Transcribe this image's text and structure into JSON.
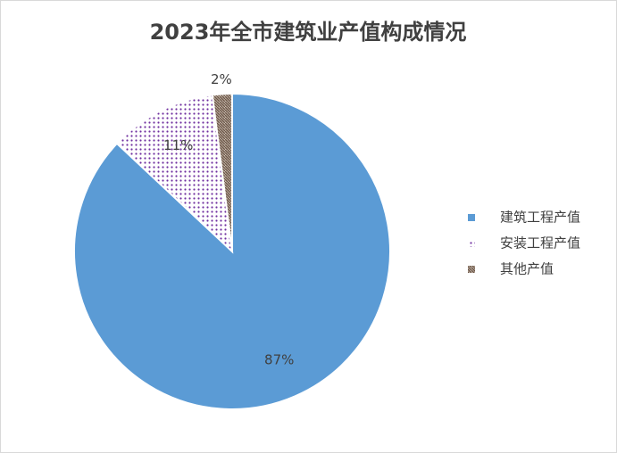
{
  "chart_data": {
    "type": "pie",
    "title": "2023年全市建筑业产值构成情况",
    "categories": [
      "建筑工程产值",
      "安装工程产值",
      "其他产值"
    ],
    "values": [
      87,
      11,
      2
    ],
    "value_labels": [
      "87%",
      "11%",
      "2%"
    ],
    "colors": [
      "#5b9bd5",
      "#7030a0",
      "#7f6a5a"
    ],
    "patterns": [
      "solid",
      "dots",
      "texture"
    ],
    "legend": "right"
  }
}
